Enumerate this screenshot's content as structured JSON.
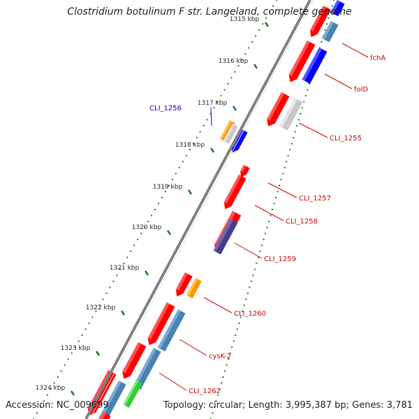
{
  "title": "Clostridium botulinum F str. Langeland, complete genome",
  "footer": {
    "accession": "Accession: NC_009699",
    "topology": "Topology: circular; Length: 3,995,387 bp; Genes: 3,781"
  },
  "colors": {
    "backbone": "#808080",
    "tick_mark": "#1a7a1a",
    "red": "#ff0000",
    "blue": "#0000ff",
    "steelblue": "#4682b4",
    "gray": "#c8c8c8",
    "orange": "#ff9900",
    "darkslate": "#483d8b",
    "green": "#33cc33",
    "label_red": "#cc0000",
    "label_blue": "#0000cc"
  },
  "kbp_ticks": [
    {
      "label": "1315 kbp"
    },
    {
      "label": "1316 kbp"
    },
    {
      "label": "1317 kbp"
    },
    {
      "label": "1318 kbp"
    },
    {
      "label": "1319 kbp"
    },
    {
      "label": "1320 kbp"
    },
    {
      "label": "1321 kbp"
    },
    {
      "label": "1322 kbp"
    },
    {
      "label": "1323 kbp"
    },
    {
      "label": "1324 kbp"
    }
  ],
  "gene_labels": [
    {
      "text": "fchA",
      "color": "label_red"
    },
    {
      "text": "folD",
      "color": "label_red"
    },
    {
      "text": "CLI_1256",
      "color": "label_blue"
    },
    {
      "text": "CLI_1255",
      "color": "label_red"
    },
    {
      "text": "CLI_1257",
      "color": "label_red"
    },
    {
      "text": "CLI_1258",
      "color": "label_red"
    },
    {
      "text": "CLI_1259",
      "color": "label_red"
    },
    {
      "text": "CLI_1260",
      "color": "label_red"
    },
    {
      "text": "cysK-2",
      "color": "label_red"
    },
    {
      "text": "CLI_1262",
      "color": "label_red"
    }
  ]
}
